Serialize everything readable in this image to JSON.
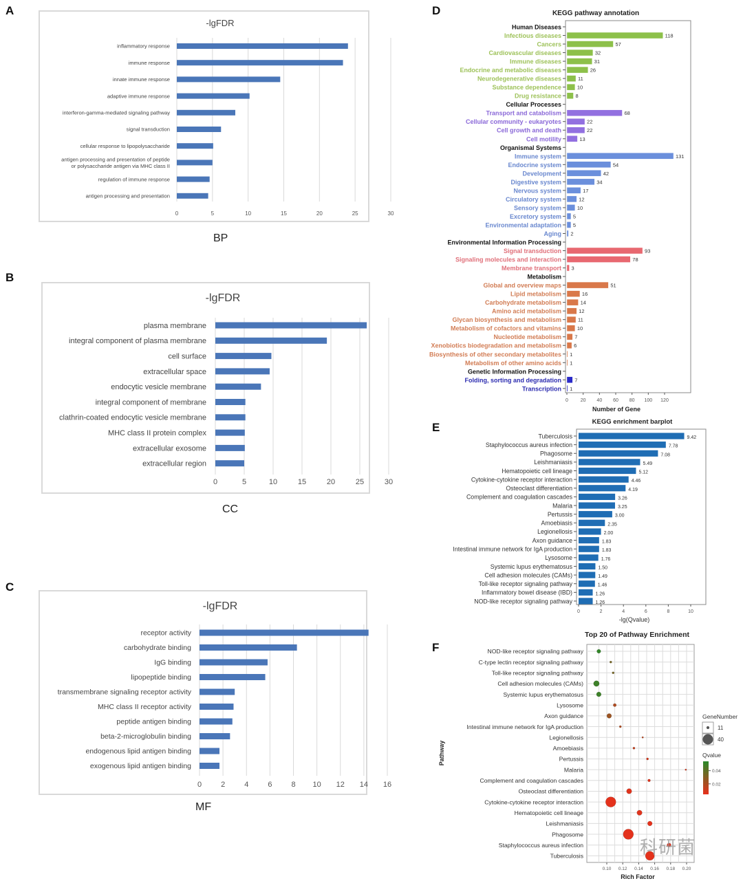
{
  "panels": {
    "A": {
      "label": "A",
      "caption": "BP"
    },
    "B": {
      "label": "B",
      "caption": "CC"
    },
    "C": {
      "label": "C",
      "caption": "MF"
    },
    "D": {
      "label": "D"
    },
    "E": {
      "label": "E"
    },
    "F": {
      "label": "F"
    }
  },
  "watermark": "科研菌",
  "chart_data": [
    {
      "id": "A",
      "type": "bar",
      "orientation": "horizontal",
      "title": "-lgFDR",
      "xlabel": "BP",
      "xlim": [
        0,
        30
      ],
      "xticks": [
        0,
        5,
        10,
        15,
        20,
        25,
        30
      ],
      "grid": true,
      "color": "#4a76b8",
      "categories": [
        "inflammatory response",
        "immune response",
        "innate immune response",
        "adaptive immune response",
        "interferon-gamma-mediated signaling pathway",
        "signal transduction",
        "cellular response to lipopolysaccharide",
        "antigen processing and presentation of peptide\nor polysaccharide antigen via MHC class II",
        "regulation of immune response",
        "antigen processing and presentation"
      ],
      "values": [
        24.0,
        23.3,
        14.5,
        10.2,
        8.2,
        6.2,
        5.1,
        5.0,
        4.6,
        4.4
      ]
    },
    {
      "id": "B",
      "type": "bar",
      "orientation": "horizontal",
      "title": "-lgFDR",
      "xlabel": "CC",
      "xlim": [
        0,
        30
      ],
      "xticks": [
        0,
        5,
        10,
        15,
        20,
        25,
        30
      ],
      "grid": true,
      "color": "#4a76b8",
      "categories": [
        "plasma membrane",
        "integral component of plasma membrane",
        "cell surface",
        "extracellular space",
        "endocytic vesicle membrane",
        "integral component of membrane",
        "clathrin-coated endocytic vesicle membrane",
        "MHC class II protein complex",
        "extracellular exosome",
        "extracellular region"
      ],
      "values": [
        26.2,
        19.3,
        9.7,
        9.4,
        7.9,
        5.2,
        5.2,
        5.1,
        5.1,
        5.0
      ]
    },
    {
      "id": "C",
      "type": "bar",
      "orientation": "horizontal",
      "title": "-lgFDR",
      "xlabel": "MF",
      "xlim": [
        0,
        16
      ],
      "xticks": [
        0,
        2,
        4,
        6,
        8,
        10,
        12,
        14,
        16
      ],
      "grid": true,
      "color": "#4a76b8",
      "categories": [
        "receptor activity",
        "carbohydrate binding",
        "IgG binding",
        "lipopeptide binding",
        "transmembrane signaling receptor activity",
        "MHC class II receptor activity",
        "peptide antigen binding",
        "beta-2-microglobulin binding",
        "endogenous lipid antigen binding",
        "exogenous lipid antigen binding"
      ],
      "values": [
        14.4,
        8.3,
        5.8,
        5.6,
        3.0,
        2.9,
        2.8,
        2.6,
        1.7,
        1.7
      ]
    },
    {
      "id": "D",
      "type": "bar",
      "orientation": "horizontal",
      "title": "KEGG pathway annotation",
      "xlabel": "Number of Gene",
      "xlim": [
        0,
        150
      ],
      "xticks": [
        0,
        20,
        40,
        60,
        80,
        100,
        120
      ],
      "grid": false,
      "groups": [
        {
          "name": "Human Diseases",
          "color": "#8dc04a",
          "text_color": "#9ec25a",
          "categories": [
            "Infectious diseases",
            "Cancers",
            "Cardiovascular diseases",
            "Immune diseases",
            "Endocrine and metabolic diseases",
            "Neurodegenerative diseases",
            "Substance dependence",
            "Drug resistance"
          ],
          "values": [
            118,
            57,
            32,
            31,
            26,
            11,
            10,
            8
          ]
        },
        {
          "name": "Cellular Processes",
          "color": "#9270e0",
          "text_color": "#8a68d8",
          "categories": [
            "Transport and catabolism",
            "Cellular community - eukaryotes",
            "Cell growth and death",
            "Cell motility"
          ],
          "values": [
            68,
            22,
            22,
            13
          ]
        },
        {
          "name": "Organismal Systems",
          "color": "#6b8fdc",
          "text_color": "#6a88cf",
          "categories": [
            "Immune system",
            "Endocrine system",
            "Development",
            "Digestive system",
            "Nervous system",
            "Circulatory system",
            "Sensory system",
            "Excretory system",
            "Environmental adaptation",
            "Aging"
          ],
          "values": [
            131,
            54,
            42,
            34,
            17,
            12,
            10,
            5,
            5,
            2
          ]
        },
        {
          "name": "Environmental Information Processing",
          "color": "#e86870",
          "text_color": "#e0707a",
          "categories": [
            "Signal transduction",
            "Signaling molecules and interaction",
            "Membrane transport"
          ],
          "values": [
            93,
            78,
            3
          ]
        },
        {
          "name": "Metabolism",
          "color": "#d9784a",
          "text_color": "#d27d55",
          "categories": [
            "Global and overview maps",
            "Lipid metabolism",
            "Carbohydrate metabolism",
            "Amino acid metabolism",
            "Glycan biosynthesis and metabolism",
            "Metabolism of cofactors and vitamins",
            "Nucleotide metabolism",
            "Xenobiotics biodegradation and metabolism",
            "Biosynthesis of other secondary metabolites",
            "Metabolism of other amino acids"
          ],
          "values": [
            51,
            16,
            14,
            12,
            11,
            10,
            7,
            6,
            1,
            1
          ]
        },
        {
          "name": "Genetic Information Processing",
          "color": "#2a2ac8",
          "text_color": "#2d2db0",
          "categories": [
            "Folding, sorting and degradation",
            "Transcription"
          ],
          "values": [
            7,
            1
          ]
        }
      ]
    },
    {
      "id": "E",
      "type": "bar",
      "orientation": "horizontal",
      "title": "KEGG enrichment barplot",
      "xlabel": "-lg(Qvalue)",
      "xlim": [
        0,
        11
      ],
      "xticks": [
        0,
        2,
        4,
        6,
        8,
        10
      ],
      "grid": false,
      "color": "#1f6db4",
      "categories": [
        "Tuberculosis",
        "Staphylococcus aureus infection",
        "Phagosome",
        "Leishmaniasis",
        "Hematopoietic cell lineage",
        "Cytokine-cytokine receptor interaction",
        "Osteoclast differentiation",
        "Complement and coagulation cascades",
        "Malaria",
        "Pertussis",
        "Amoebiasis",
        "Legionellosis",
        "Axon guidance",
        "Intestinal immune network for IgA production",
        "Lysosome",
        "Systemic lupus erythematosus",
        "Cell adhesion molecules (CAMs)",
        "Toll-like receptor signaling pathway",
        "Inflammatory bowel disease (IBD)",
        "NOD-like receptor signaling pathway"
      ],
      "values": [
        9.42,
        7.78,
        7.08,
        5.49,
        5.12,
        4.46,
        4.19,
        3.26,
        3.25,
        3.0,
        2.35,
        2.0,
        1.83,
        1.83,
        1.76,
        1.5,
        1.49,
        1.46,
        1.26,
        1.26
      ],
      "value_labels": [
        "9.42",
        "7.78",
        "7.08",
        "5.49",
        "5.12",
        "4.46",
        "4.19",
        "3.26",
        "3.25",
        "3.00",
        "2.35",
        "2.00",
        "1.83",
        "1.83",
        "1.76",
        "1.50",
        "1.49",
        "1.46",
        "1.26",
        "1.26"
      ]
    },
    {
      "id": "F",
      "type": "scatter",
      "title": "Top 20 of Pathway Enrichment",
      "xlabel": "Rich Factor",
      "ylabel": "Pathway",
      "xlim": [
        0.083,
        0.205
      ],
      "xticks": [
        0.1,
        0.12,
        0.14,
        0.16,
        0.18,
        0.2
      ],
      "xtick_labels": [
        "0.10",
        "0.12",
        "0.14",
        "0.16",
        "0.18",
        "0.20"
      ],
      "grid": true,
      "categories": [
        "NOD-like receptor signaling pathway",
        "C-type lectin receptor signaling pathway",
        "Toll-like receptor signaling pathway",
        "Cell adhesion molecules (CAMs)",
        "Systemic lupus erythematosus",
        "Lysosome",
        "Axon guidance",
        "Intestinal immune network for IgA production",
        "Legionellosis",
        "Amoebiasis",
        "Pertussis",
        "Malaria",
        "Complement and coagulation cascades",
        "Osteoclast differentiation",
        "Cytokine-cytokine receptor interaction",
        "Hematopoietic cell lineage",
        "Leishmaniasis",
        "Phagosome",
        "Staphylococcus aureus infection",
        "Tuberculosis"
      ],
      "rich_factor": [
        0.09,
        0.105,
        0.108,
        0.087,
        0.09,
        0.11,
        0.103,
        0.117,
        0.145,
        0.134,
        0.151,
        0.199,
        0.153,
        0.128,
        0.105,
        0.141,
        0.154,
        0.127,
        0.178,
        0.154
      ],
      "gene_number": [
        15,
        8,
        8,
        22,
        18,
        12,
        18,
        8,
        6,
        8,
        8,
        6,
        10,
        20,
        40,
        20,
        18,
        40,
        15,
        35
      ],
      "qvalue": [
        0.048,
        0.03,
        0.03,
        0.045,
        0.045,
        0.015,
        0.02,
        0.015,
        0.012,
        0.01,
        0.005,
        0.005,
        0.003,
        0.002,
        0.001,
        0.002,
        0.001,
        0.001,
        0.001,
        0.001
      ],
      "legend": {
        "size_title": "GeneNumber",
        "size_entries": [
          {
            "label": "11",
            "value": 11
          },
          {
            "label": "40",
            "value": 40
          }
        ],
        "color_title": "Qvalue",
        "color_ticks": [
          {
            "label": "0.04",
            "value": 0.04
          },
          {
            "label": "0.02",
            "value": 0.02
          }
        ],
        "color_low": "#e8301c",
        "color_high": "#2a8a2a",
        "qrange": [
          0.0,
          0.05
        ],
        "placement": "right"
      }
    }
  ]
}
